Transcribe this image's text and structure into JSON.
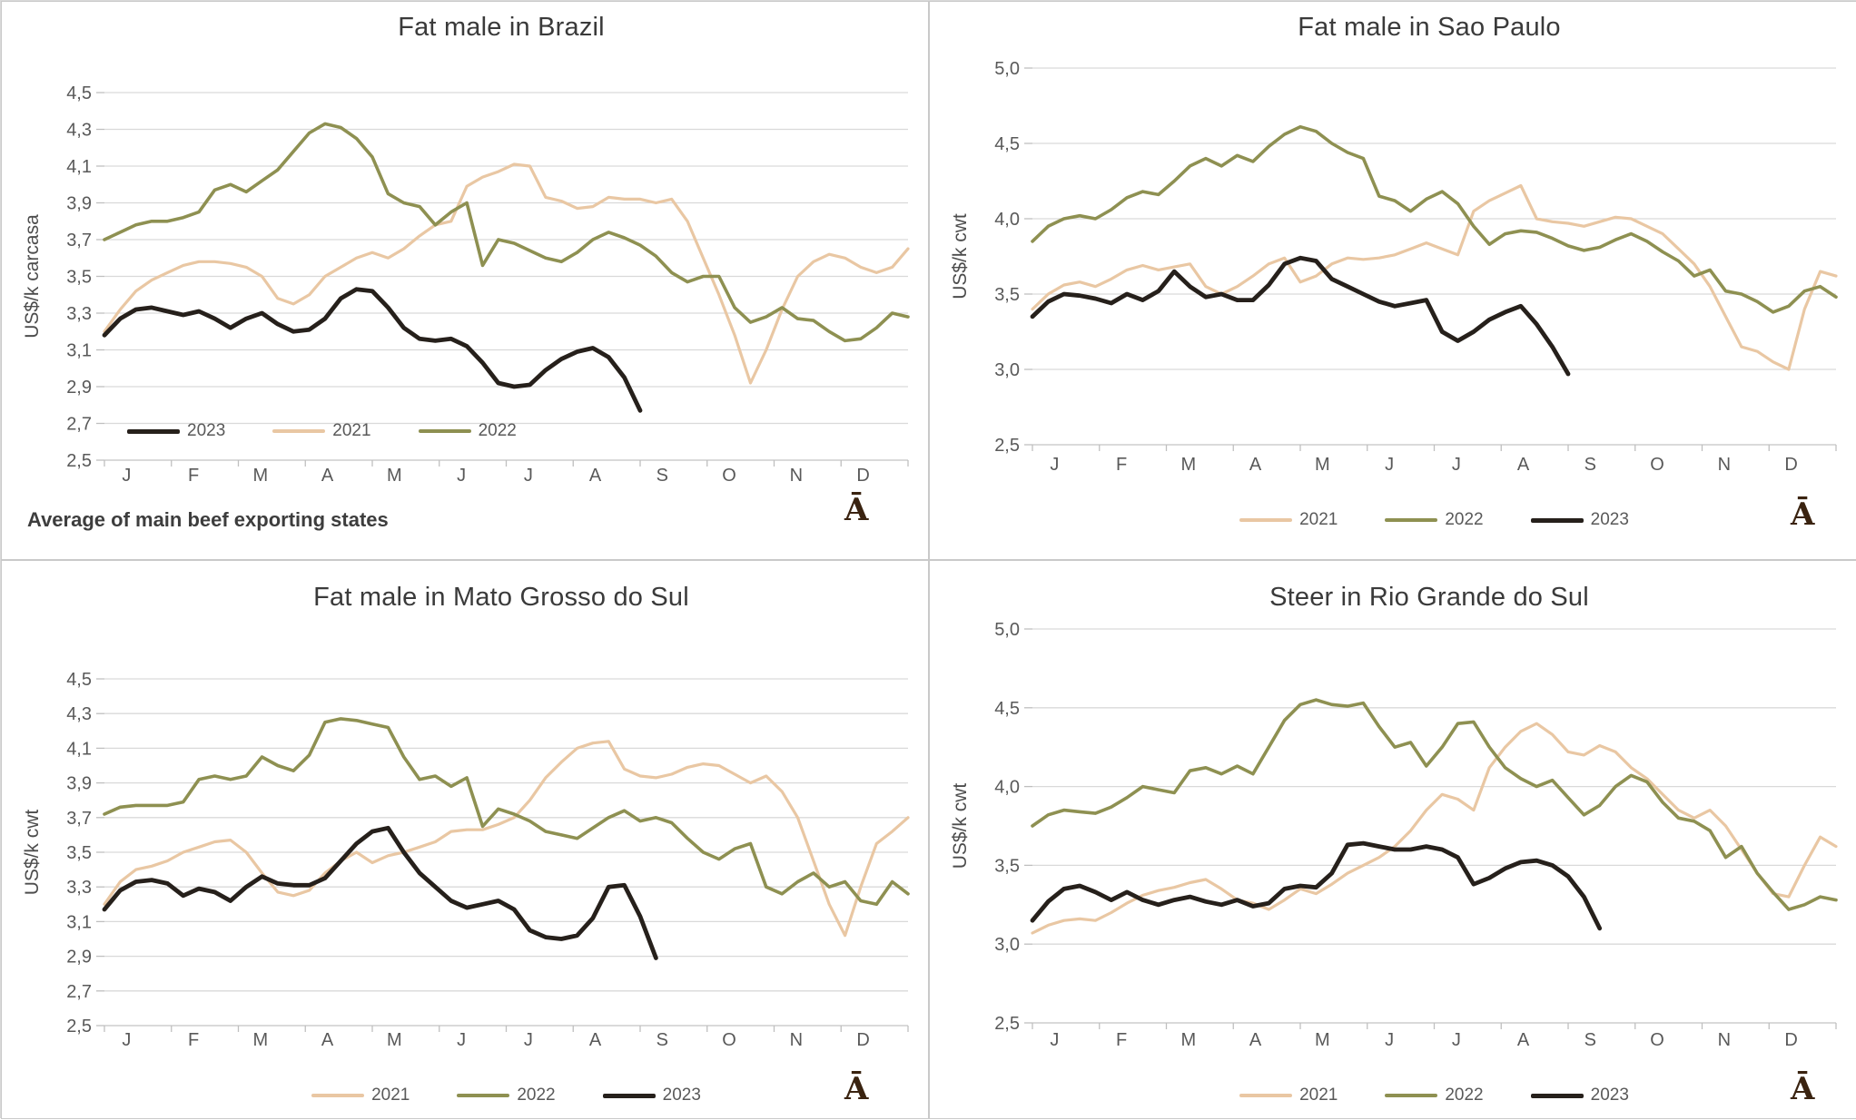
{
  "page": {
    "background": "#ffffff"
  },
  "colors": {
    "y2021": "#e9c7a3",
    "y2022": "#8e9051",
    "y2023": "#26201b",
    "grid": "#d9d9d9",
    "axis_line": "#bfbfbf",
    "axis_text": "#595959",
    "title_text": "#3a3a3a",
    "watermark": "#3a2310"
  },
  "watermark_glyph": "Ā",
  "footnote": "Average of main beef exporting states",
  "months": [
    "J",
    "F",
    "M",
    "A",
    "M",
    "J",
    "J",
    "A",
    "S",
    "O",
    "N",
    "D"
  ],
  "chart_data": [
    {
      "type": "line",
      "title": "Fat male in Brazil",
      "ylabel": "US$/k carcasa",
      "xlabel": "",
      "ylim": [
        2.5,
        4.5
      ],
      "yticks": [
        4.5,
        4.3,
        4.1,
        3.9,
        3.7,
        3.5,
        3.3,
        3.1,
        2.9,
        2.7,
        2.5
      ],
      "ytick_labels": [
        "4,5",
        "4,3",
        "4,1",
        "3,9",
        "3,7",
        "3,5",
        "3,3",
        "3,1",
        "2,9",
        "2,7",
        "2,5"
      ],
      "grid": true,
      "legend_position": "inside-bottom-left",
      "legend_items": [
        "2023",
        "2021",
        "2022"
      ],
      "footnote": "Average of main beef exporting states",
      "series": [
        {
          "name": "2021",
          "color_key": "y2021",
          "values": [
            3.2,
            3.32,
            3.42,
            3.48,
            3.52,
            3.56,
            3.58,
            3.58,
            3.57,
            3.55,
            3.5,
            3.38,
            3.35,
            3.4,
            3.5,
            3.55,
            3.6,
            3.63,
            3.6,
            3.65,
            3.72,
            3.78,
            3.8,
            3.99,
            4.04,
            4.07,
            4.11,
            4.1,
            3.93,
            3.91,
            3.87,
            3.88,
            3.93,
            3.92,
            3.92,
            3.9,
            3.92,
            3.8,
            3.6,
            3.4,
            3.18,
            2.92,
            3.1,
            3.32,
            3.5,
            3.58,
            3.62,
            3.6,
            3.55,
            3.52,
            3.55,
            3.65
          ]
        },
        {
          "name": "2022",
          "color_key": "y2022",
          "values": [
            3.7,
            3.74,
            3.78,
            3.8,
            3.8,
            3.82,
            3.85,
            3.97,
            4.0,
            3.96,
            4.02,
            4.08,
            4.18,
            4.28,
            4.33,
            4.31,
            4.25,
            4.15,
            3.95,
            3.9,
            3.88,
            3.78,
            3.85,
            3.9,
            3.56,
            3.7,
            3.68,
            3.64,
            3.6,
            3.58,
            3.63,
            3.7,
            3.74,
            3.71,
            3.67,
            3.61,
            3.52,
            3.47,
            3.5,
            3.5,
            3.33,
            3.25,
            3.28,
            3.33,
            3.27,
            3.26,
            3.2,
            3.15,
            3.16,
            3.22,
            3.3,
            3.28
          ]
        },
        {
          "name": "2023",
          "color_key": "y2023",
          "values": [
            3.18,
            3.27,
            3.32,
            3.33,
            3.31,
            3.29,
            3.31,
            3.27,
            3.22,
            3.27,
            3.3,
            3.24,
            3.2,
            3.21,
            3.27,
            3.38,
            3.43,
            3.42,
            3.33,
            3.22,
            3.16,
            3.15,
            3.16,
            3.12,
            3.03,
            2.92,
            2.9,
            2.91,
            2.99,
            3.05,
            3.09,
            3.11,
            3.06,
            2.95,
            2.77
          ]
        }
      ]
    },
    {
      "type": "line",
      "title": "Fat male in Sao Paulo",
      "ylabel": "US$/k cwt",
      "xlabel": "",
      "ylim": [
        2.5,
        5.0
      ],
      "yticks": [
        5.0,
        4.5,
        4.0,
        3.5,
        3.0,
        2.5
      ],
      "ytick_labels": [
        "5,0",
        "4,5",
        "4,0",
        "3,5",
        "3,0",
        "2,5"
      ],
      "grid": true,
      "legend_position": "below",
      "legend_items": [
        "2021",
        "2022",
        "2023"
      ],
      "footnote": "",
      "series": [
        {
          "name": "2021",
          "color_key": "y2021",
          "values": [
            3.4,
            3.5,
            3.56,
            3.58,
            3.55,
            3.6,
            3.66,
            3.69,
            3.66,
            3.68,
            3.7,
            3.55,
            3.5,
            3.55,
            3.62,
            3.7,
            3.74,
            3.58,
            3.62,
            3.7,
            3.74,
            3.73,
            3.74,
            3.76,
            3.8,
            3.84,
            3.8,
            3.76,
            4.05,
            4.12,
            4.17,
            4.22,
            4.0,
            3.98,
            3.97,
            3.95,
            3.98,
            4.01,
            4.0,
            3.95,
            3.9,
            3.8,
            3.7,
            3.55,
            3.35,
            3.15,
            3.12,
            3.05,
            3.0,
            3.4,
            3.65,
            3.62
          ]
        },
        {
          "name": "2022",
          "color_key": "y2022",
          "values": [
            3.85,
            3.95,
            4.0,
            4.02,
            4.0,
            4.06,
            4.14,
            4.18,
            4.16,
            4.25,
            4.35,
            4.4,
            4.35,
            4.42,
            4.38,
            4.48,
            4.56,
            4.61,
            4.58,
            4.5,
            4.44,
            4.4,
            4.15,
            4.12,
            4.05,
            4.13,
            4.18,
            4.1,
            3.95,
            3.83,
            3.9,
            3.92,
            3.91,
            3.87,
            3.82,
            3.79,
            3.81,
            3.86,
            3.9,
            3.85,
            3.78,
            3.72,
            3.62,
            3.66,
            3.52,
            3.5,
            3.45,
            3.38,
            3.42,
            3.52,
            3.55,
            3.48
          ]
        },
        {
          "name": "2023",
          "color_key": "y2023",
          "values": [
            3.35,
            3.45,
            3.5,
            3.49,
            3.47,
            3.44,
            3.5,
            3.46,
            3.52,
            3.65,
            3.55,
            3.48,
            3.5,
            3.46,
            3.46,
            3.56,
            3.7,
            3.74,
            3.72,
            3.6,
            3.55,
            3.5,
            3.45,
            3.42,
            3.44,
            3.46,
            3.25,
            3.19,
            3.25,
            3.33,
            3.38,
            3.42,
            3.3,
            3.15,
            2.97
          ]
        }
      ]
    },
    {
      "type": "line",
      "title": "Fat male in Mato Grosso do Sul",
      "ylabel": "US$/k cwt",
      "xlabel": "",
      "ylim": [
        2.5,
        4.5
      ],
      "yticks": [
        4.5,
        4.3,
        4.1,
        3.9,
        3.7,
        3.5,
        3.3,
        3.1,
        2.9,
        2.7,
        2.5
      ],
      "ytick_labels": [
        "4,5",
        "4,3",
        "4,1",
        "3,9",
        "3,7",
        "3,5",
        "3,3",
        "3,1",
        "2,9",
        "2,7",
        "2,5"
      ],
      "grid": true,
      "legend_position": "below",
      "legend_items": [
        "2021",
        "2022",
        "2023"
      ],
      "footnote": "",
      "series": [
        {
          "name": "2021",
          "color_key": "y2021",
          "values": [
            3.2,
            3.33,
            3.4,
            3.42,
            3.45,
            3.5,
            3.53,
            3.56,
            3.57,
            3.5,
            3.38,
            3.27,
            3.25,
            3.28,
            3.38,
            3.45,
            3.5,
            3.44,
            3.48,
            3.5,
            3.53,
            3.56,
            3.62,
            3.63,
            3.63,
            3.66,
            3.7,
            3.8,
            3.93,
            4.02,
            4.1,
            4.13,
            4.14,
            3.98,
            3.94,
            3.93,
            3.95,
            3.99,
            4.01,
            4.0,
            3.95,
            3.9,
            3.94,
            3.85,
            3.7,
            3.45,
            3.2,
            3.02,
            3.3,
            3.55,
            3.62,
            3.7
          ]
        },
        {
          "name": "2022",
          "color_key": "y2022",
          "values": [
            3.72,
            3.76,
            3.77,
            3.77,
            3.77,
            3.79,
            3.92,
            3.94,
            3.92,
            3.94,
            4.05,
            4.0,
            3.97,
            4.06,
            4.25,
            4.27,
            4.26,
            4.24,
            4.22,
            4.05,
            3.92,
            3.94,
            3.88,
            3.93,
            3.65,
            3.75,
            3.72,
            3.68,
            3.62,
            3.6,
            3.58,
            3.64,
            3.7,
            3.74,
            3.68,
            3.7,
            3.67,
            3.58,
            3.5,
            3.46,
            3.52,
            3.55,
            3.3,
            3.26,
            3.33,
            3.38,
            3.3,
            3.33,
            3.22,
            3.2,
            3.33,
            3.26
          ]
        },
        {
          "name": "2023",
          "color_key": "y2023",
          "values": [
            3.17,
            3.28,
            3.33,
            3.34,
            3.32,
            3.25,
            3.29,
            3.27,
            3.22,
            3.3,
            3.36,
            3.32,
            3.31,
            3.31,
            3.35,
            3.45,
            3.55,
            3.62,
            3.64,
            3.5,
            3.38,
            3.3,
            3.22,
            3.18,
            3.2,
            3.22,
            3.17,
            3.05,
            3.01,
            3.0,
            3.02,
            3.12,
            3.3,
            3.31,
            3.13,
            2.89
          ]
        }
      ]
    },
    {
      "type": "line",
      "title": "Steer in Rio Grande do Sul",
      "ylabel": "US$/k cwt",
      "xlabel": "",
      "ylim": [
        2.5,
        5.0
      ],
      "yticks": [
        5.0,
        4.5,
        4.0,
        3.5,
        3.0,
        2.5
      ],
      "ytick_labels": [
        "5,0",
        "4,5",
        "4,0",
        "3,5",
        "3,0",
        "2,5"
      ],
      "grid": true,
      "legend_position": "below",
      "legend_items": [
        "2021",
        "2022",
        "2023"
      ],
      "footnote": "",
      "series": [
        {
          "name": "2021",
          "color_key": "y2021",
          "values": [
            3.07,
            3.12,
            3.15,
            3.16,
            3.15,
            3.2,
            3.26,
            3.31,
            3.34,
            3.36,
            3.39,
            3.41,
            3.35,
            3.28,
            3.26,
            3.22,
            3.28,
            3.35,
            3.32,
            3.38,
            3.45,
            3.5,
            3.55,
            3.62,
            3.72,
            3.85,
            3.95,
            3.92,
            3.85,
            4.12,
            4.25,
            4.35,
            4.4,
            4.33,
            4.22,
            4.2,
            4.26,
            4.22,
            4.12,
            4.05,
            3.95,
            3.85,
            3.8,
            3.85,
            3.75,
            3.6,
            3.45,
            3.32,
            3.3,
            3.5,
            3.68,
            3.62
          ]
        },
        {
          "name": "2022",
          "color_key": "y2022",
          "values": [
            3.75,
            3.82,
            3.85,
            3.84,
            3.83,
            3.87,
            3.93,
            4.0,
            3.98,
            3.96,
            4.1,
            4.12,
            4.08,
            4.13,
            4.08,
            4.25,
            4.42,
            4.52,
            4.55,
            4.52,
            4.51,
            4.53,
            4.38,
            4.25,
            4.28,
            4.13,
            4.25,
            4.4,
            4.41,
            4.25,
            4.12,
            4.05,
            4.0,
            4.04,
            3.93,
            3.82,
            3.88,
            4.0,
            4.07,
            4.03,
            3.9,
            3.8,
            3.78,
            3.72,
            3.55,
            3.62,
            3.45,
            3.33,
            3.22,
            3.25,
            3.3,
            3.28
          ]
        },
        {
          "name": "2023",
          "color_key": "y2023",
          "values": [
            3.15,
            3.27,
            3.35,
            3.37,
            3.33,
            3.28,
            3.33,
            3.28,
            3.25,
            3.28,
            3.3,
            3.27,
            3.25,
            3.28,
            3.24,
            3.26,
            3.35,
            3.37,
            3.36,
            3.45,
            3.63,
            3.64,
            3.62,
            3.6,
            3.6,
            3.62,
            3.6,
            3.55,
            3.38,
            3.42,
            3.48,
            3.52,
            3.53,
            3.5,
            3.43,
            3.3,
            3.1
          ]
        }
      ]
    }
  ]
}
